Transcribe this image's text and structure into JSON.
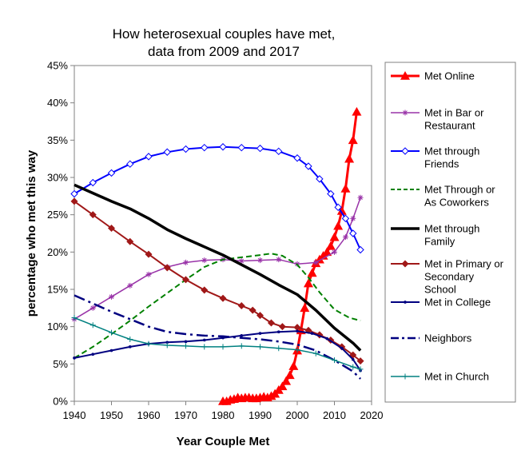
{
  "chart_data": {
    "type": "line",
    "title": [
      "How heterosexual couples have met,",
      "data from 2009 and 2017"
    ],
    "xlabel": "Year Couple Met",
    "ylabel": "percentage who met this way",
    "xlim": [
      1940,
      2020
    ],
    "ylim": [
      0,
      45
    ],
    "x_ticks": [
      1940,
      1950,
      1960,
      1970,
      1980,
      1990,
      2000,
      2010,
      2020
    ],
    "y_ticks": [
      0,
      5,
      10,
      15,
      20,
      25,
      30,
      35,
      40,
      45
    ],
    "y_tick_format": "percent",
    "grid": false,
    "legend": "right",
    "series": [
      {
        "name": [
          "Met Online"
        ],
        "color": "#ff0000",
        "dash": "solid",
        "width": 3,
        "marker": "triangle",
        "points": [
          [
            1980,
            0
          ],
          [
            1981,
            0
          ],
          [
            1982,
            0.2
          ],
          [
            1983,
            0.3
          ],
          [
            1984,
            0.5
          ],
          [
            1985,
            0.4
          ],
          [
            1986,
            0.5
          ],
          [
            1987,
            0.5
          ],
          [
            1988,
            0.4
          ],
          [
            1989,
            0.4
          ],
          [
            1990,
            0.5
          ],
          [
            1991,
            0.6
          ],
          [
            1992,
            0.5
          ],
          [
            1993,
            0.7
          ],
          [
            1994,
            1.0
          ],
          [
            1995,
            1.5
          ],
          [
            1996,
            2.0
          ],
          [
            1997,
            2.7
          ],
          [
            1998,
            3.5
          ],
          [
            1999,
            4.7
          ],
          [
            2000,
            6.8
          ],
          [
            2001,
            9.5
          ],
          [
            2002,
            12.5
          ],
          [
            2003,
            15.8
          ],
          [
            2004,
            17.2
          ],
          [
            2005,
            18.5
          ],
          [
            2006,
            19.0
          ],
          [
            2007,
            19.5
          ],
          [
            2008,
            20.0
          ],
          [
            2009,
            20.8
          ],
          [
            2010,
            22.0
          ],
          [
            2011,
            23.5
          ],
          [
            2012,
            25.5
          ],
          [
            2013,
            28.5
          ],
          [
            2014,
            32.5
          ],
          [
            2015,
            35.0
          ],
          [
            2016,
            38.8
          ]
        ]
      },
      {
        "name": [
          "Met in Bar or",
          "Restaurant"
        ],
        "color": "#9933a8",
        "dash": "solid",
        "width": 1.5,
        "marker": "star",
        "points": [
          [
            1940,
            11.0
          ],
          [
            1945,
            12.5
          ],
          [
            1950,
            14.0
          ],
          [
            1955,
            15.5
          ],
          [
            1960,
            17.0
          ],
          [
            1965,
            18.0
          ],
          [
            1970,
            18.6
          ],
          [
            1975,
            18.9
          ],
          [
            1980,
            19.0
          ],
          [
            1985,
            18.8
          ],
          [
            1990,
            18.9
          ],
          [
            1995,
            19.0
          ],
          [
            2000,
            18.4
          ],
          [
            2005,
            18.6
          ],
          [
            2010,
            20.0
          ],
          [
            2013,
            22.0
          ],
          [
            2015,
            24.5
          ],
          [
            2017,
            27.3
          ]
        ]
      },
      {
        "name": [
          "Met through",
          "Friends"
        ],
        "color": "#0000ff",
        "dash": "solid",
        "width": 2,
        "marker": "diamond-open",
        "points": [
          [
            1940,
            27.8
          ],
          [
            1945,
            29.3
          ],
          [
            1950,
            30.6
          ],
          [
            1955,
            31.8
          ],
          [
            1960,
            32.8
          ],
          [
            1965,
            33.4
          ],
          [
            1970,
            33.8
          ],
          [
            1975,
            34.0
          ],
          [
            1980,
            34.1
          ],
          [
            1985,
            34.0
          ],
          [
            1990,
            33.9
          ],
          [
            1995,
            33.5
          ],
          [
            2000,
            32.6
          ],
          [
            2003,
            31.5
          ],
          [
            2006,
            29.8
          ],
          [
            2009,
            27.8
          ],
          [
            2011,
            26.0
          ],
          [
            2013,
            24.5
          ],
          [
            2015,
            22.5
          ],
          [
            2017,
            20.3
          ]
        ]
      },
      {
        "name": [
          "Met Through or",
          "As Coworkers"
        ],
        "color": "#008000",
        "dash": "dashed",
        "width": 2,
        "marker": "none",
        "points": [
          [
            1940,
            5.8
          ],
          [
            1945,
            7.3
          ],
          [
            1950,
            9.0
          ],
          [
            1955,
            10.8
          ],
          [
            1960,
            12.7
          ],
          [
            1965,
            14.5
          ],
          [
            1970,
            16.3
          ],
          [
            1975,
            18.0
          ],
          [
            1980,
            19.0
          ],
          [
            1985,
            19.3
          ],
          [
            1990,
            19.6
          ],
          [
            1993,
            19.8
          ],
          [
            1996,
            19.5
          ],
          [
            2000,
            18.3
          ],
          [
            2003,
            16.6
          ],
          [
            2006,
            14.6
          ],
          [
            2010,
            12.3
          ],
          [
            2014,
            11.2
          ],
          [
            2017,
            10.8
          ]
        ]
      },
      {
        "name": [
          "Met through",
          "Family"
        ],
        "color": "#000000",
        "dash": "solid",
        "width": 3.5,
        "marker": "none",
        "points": [
          [
            1940,
            29.0
          ],
          [
            1945,
            27.9
          ],
          [
            1950,
            26.8
          ],
          [
            1955,
            25.8
          ],
          [
            1960,
            24.5
          ],
          [
            1965,
            23.0
          ],
          [
            1970,
            21.8
          ],
          [
            1975,
            20.7
          ],
          [
            1980,
            19.6
          ],
          [
            1985,
            18.3
          ],
          [
            1990,
            17.0
          ],
          [
            1995,
            15.6
          ],
          [
            2000,
            14.3
          ],
          [
            2005,
            12.2
          ],
          [
            2010,
            9.8
          ],
          [
            2015,
            7.8
          ],
          [
            2017,
            6.8
          ]
        ]
      },
      {
        "name": [
          "Met in Primary or",
          "Secondary",
          "School"
        ],
        "color": "#a01818",
        "dash": "solid",
        "width": 2,
        "marker": "diamond",
        "points": [
          [
            1940,
            26.8
          ],
          [
            1945,
            25.0
          ],
          [
            1950,
            23.2
          ],
          [
            1955,
            21.4
          ],
          [
            1960,
            19.7
          ],
          [
            1965,
            17.9
          ],
          [
            1970,
            16.3
          ],
          [
            1975,
            14.9
          ],
          [
            1980,
            13.8
          ],
          [
            1985,
            12.8
          ],
          [
            1988,
            12.2
          ],
          [
            1990,
            11.5
          ],
          [
            1993,
            10.5
          ],
          [
            1996,
            10.0
          ],
          [
            2000,
            9.9
          ],
          [
            2003,
            9.5
          ],
          [
            2006,
            8.9
          ],
          [
            2009,
            8.2
          ],
          [
            2012,
            7.3
          ],
          [
            2015,
            6.2
          ],
          [
            2017,
            5.4
          ]
        ]
      },
      {
        "name": [
          "Met in College"
        ],
        "color": "#000080",
        "dash": "solid",
        "width": 2,
        "marker": "dot",
        "points": [
          [
            1940,
            5.8
          ],
          [
            1945,
            6.3
          ],
          [
            1950,
            6.8
          ],
          [
            1955,
            7.3
          ],
          [
            1960,
            7.7
          ],
          [
            1965,
            7.9
          ],
          [
            1970,
            8.0
          ],
          [
            1975,
            8.2
          ],
          [
            1980,
            8.5
          ],
          [
            1985,
            8.8
          ],
          [
            1990,
            9.1
          ],
          [
            1995,
            9.3
          ],
          [
            2000,
            9.4
          ],
          [
            2004,
            9.1
          ],
          [
            2008,
            8.4
          ],
          [
            2012,
            7.1
          ],
          [
            2015,
            5.6
          ],
          [
            2017,
            4.1
          ]
        ]
      },
      {
        "name": [
          "Neighbors"
        ],
        "color": "#000080",
        "dash": "dashdot",
        "width": 2.5,
        "marker": "none",
        "points": [
          [
            1940,
            14.2
          ],
          [
            1945,
            13.1
          ],
          [
            1950,
            12.0
          ],
          [
            1955,
            11.0
          ],
          [
            1960,
            10.0
          ],
          [
            1965,
            9.3
          ],
          [
            1970,
            9.0
          ],
          [
            1975,
            8.8
          ],
          [
            1980,
            8.7
          ],
          [
            1985,
            8.5
          ],
          [
            1990,
            8.3
          ],
          [
            1995,
            8.0
          ],
          [
            2000,
            7.6
          ],
          [
            2005,
            6.8
          ],
          [
            2010,
            5.5
          ],
          [
            2015,
            4.0
          ],
          [
            2017,
            3.0
          ]
        ]
      },
      {
        "name": [
          "Met in Church"
        ],
        "color": "#008080",
        "dash": "solid",
        "width": 1.5,
        "marker": "plus",
        "points": [
          [
            1940,
            11.2
          ],
          [
            1945,
            10.2
          ],
          [
            1950,
            9.2
          ],
          [
            1955,
            8.3
          ],
          [
            1960,
            7.7
          ],
          [
            1965,
            7.5
          ],
          [
            1970,
            7.4
          ],
          [
            1975,
            7.3
          ],
          [
            1980,
            7.3
          ],
          [
            1985,
            7.4
          ],
          [
            1990,
            7.3
          ],
          [
            1995,
            7.1
          ],
          [
            2000,
            6.9
          ],
          [
            2005,
            6.4
          ],
          [
            2010,
            5.5
          ],
          [
            2015,
            4.6
          ],
          [
            2017,
            4.3
          ]
        ]
      }
    ]
  }
}
